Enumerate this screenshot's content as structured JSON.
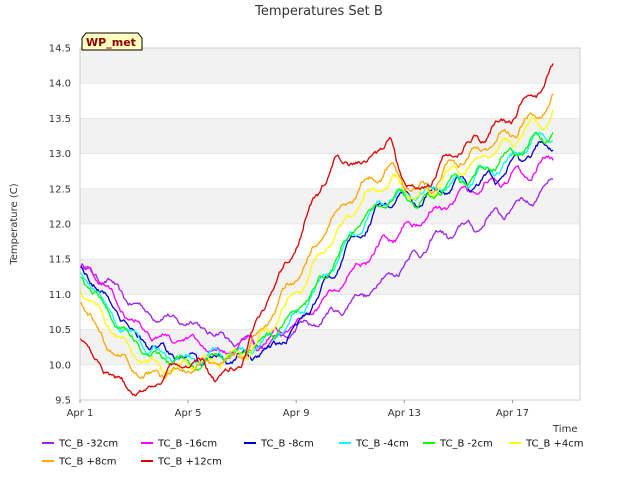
{
  "chart_data": {
    "type": "line",
    "title": "Temperatures Set B",
    "xlabel": "Time",
    "ylabel": "Temperature (C)",
    "badge": "WP_met",
    "xlim": [
      0,
      18.5
    ],
    "ylim": [
      9.5,
      14.5
    ],
    "x_ticks": [
      {
        "label": "Apr 1",
        "value": 0
      },
      {
        "label": "Apr 5",
        "value": 4
      },
      {
        "label": "Apr 9",
        "value": 8
      },
      {
        "label": "Apr 13",
        "value": 12
      },
      {
        "label": "Apr 17",
        "value": 16
      }
    ],
    "y_ticks": [
      "9.5",
      "10.0",
      "10.5",
      "11.0",
      "11.5",
      "12.0",
      "12.5",
      "13.0",
      "13.5",
      "14.0",
      "14.5"
    ],
    "x_unit": "days since Apr 1",
    "x": [
      0,
      0.5,
      1,
      1.5,
      2,
      2.5,
      3,
      3.5,
      4,
      4.5,
      5,
      5.5,
      6,
      6.5,
      7,
      7.5,
      8,
      8.5,
      9,
      9.5,
      10,
      10.5,
      11,
      11.5,
      12,
      12.5,
      13,
      13.5,
      14,
      14.5,
      15,
      15.5,
      16,
      16.5,
      17,
      17.5
    ],
    "series": [
      {
        "name": "TC_B -32cm",
        "color": "#a020f0",
        "values": [
          11.4,
          11.3,
          11.2,
          11.0,
          10.85,
          10.75,
          10.7,
          10.65,
          10.6,
          10.55,
          10.45,
          10.35,
          10.3,
          10.3,
          10.35,
          10.4,
          10.5,
          10.55,
          10.65,
          10.75,
          10.9,
          11.0,
          11.15,
          11.3,
          11.45,
          11.6,
          11.75,
          11.85,
          11.9,
          11.95,
          12.05,
          12.15,
          12.25,
          12.35,
          12.45,
          12.6
        ]
      },
      {
        "name": "TC_B -16cm",
        "color": "#ff00ff",
        "values": [
          11.4,
          11.3,
          11.1,
          10.85,
          10.65,
          10.5,
          10.4,
          10.35,
          10.3,
          10.25,
          10.2,
          10.2,
          10.25,
          10.3,
          10.4,
          10.5,
          10.6,
          10.75,
          10.9,
          11.1,
          11.3,
          11.5,
          11.65,
          11.8,
          11.95,
          12.05,
          12.15,
          12.25,
          12.35,
          12.45,
          12.55,
          12.6,
          12.65,
          12.75,
          12.85,
          12.95
        ]
      },
      {
        "name": "TC_B -8cm",
        "color": "#0000cd",
        "values": [
          11.35,
          11.2,
          10.95,
          10.7,
          10.45,
          10.3,
          10.2,
          10.15,
          10.1,
          10.05,
          10.05,
          10.05,
          10.1,
          10.15,
          10.2,
          10.35,
          10.5,
          10.8,
          11.1,
          11.4,
          11.7,
          11.95,
          12.15,
          12.3,
          12.4,
          12.35,
          12.4,
          12.5,
          12.55,
          12.55,
          12.6,
          12.7,
          12.8,
          12.95,
          13.05,
          13.2
        ]
      },
      {
        "name": "TC_B -4cm",
        "color": "#00ffff",
        "values": [
          11.3,
          11.1,
          10.85,
          10.6,
          10.4,
          10.25,
          10.15,
          10.1,
          10.05,
          10.05,
          10.1,
          10.1,
          10.15,
          10.25,
          10.35,
          10.5,
          10.7,
          10.95,
          11.2,
          11.5,
          11.8,
          12.05,
          12.25,
          12.4,
          12.45,
          12.4,
          12.45,
          12.55,
          12.6,
          12.65,
          12.75,
          12.85,
          12.95,
          13.1,
          13.2,
          13.35
        ]
      },
      {
        "name": "TC_B -2cm",
        "color": "#00ff00",
        "values": [
          11.25,
          11.05,
          10.8,
          10.55,
          10.35,
          10.2,
          10.1,
          10.05,
          10.05,
          10.05,
          10.1,
          10.1,
          10.15,
          10.25,
          10.4,
          10.55,
          10.75,
          11.0,
          11.25,
          11.55,
          11.85,
          12.1,
          12.25,
          12.35,
          12.4,
          12.3,
          12.4,
          12.55,
          12.6,
          12.7,
          12.8,
          12.9,
          13.0,
          13.1,
          13.2,
          13.35
        ]
      },
      {
        "name": "TC_B +4cm",
        "color": "#ffff00",
        "values": [
          11.1,
          10.85,
          10.6,
          10.35,
          10.15,
          10.0,
          9.95,
          9.95,
          10.0,
          10.05,
          10.05,
          10.1,
          10.15,
          10.3,
          10.5,
          10.75,
          11.0,
          11.3,
          11.6,
          11.9,
          12.15,
          12.35,
          12.5,
          12.6,
          12.55,
          12.4,
          12.5,
          12.65,
          12.75,
          12.85,
          12.95,
          13.05,
          13.15,
          13.3,
          13.45,
          13.6
        ]
      },
      {
        "name": "TC_B +8cm",
        "color": "#ffa500",
        "values": [
          10.95,
          10.6,
          10.3,
          10.1,
          9.95,
          9.85,
          9.85,
          9.9,
          9.95,
          10.0,
          10.05,
          10.1,
          10.2,
          10.4,
          10.65,
          10.95,
          11.25,
          11.55,
          11.85,
          12.15,
          12.4,
          12.55,
          12.7,
          12.8,
          12.6,
          12.45,
          12.55,
          12.75,
          12.9,
          13.0,
          13.1,
          13.2,
          13.35,
          13.45,
          13.6,
          13.8
        ]
      },
      {
        "name": "TC_B +12cm",
        "color": "#dd0000",
        "values": [
          10.45,
          10.1,
          9.95,
          9.7,
          9.65,
          9.6,
          9.75,
          9.95,
          10.0,
          10.0,
          9.8,
          9.9,
          10.1,
          10.5,
          11.0,
          11.3,
          11.7,
          12.2,
          12.6,
          12.9,
          12.95,
          12.8,
          13.05,
          13.1,
          12.6,
          12.4,
          12.65,
          12.9,
          13.05,
          13.15,
          13.3,
          13.4,
          13.55,
          13.7,
          13.95,
          14.2
        ]
      }
    ]
  }
}
